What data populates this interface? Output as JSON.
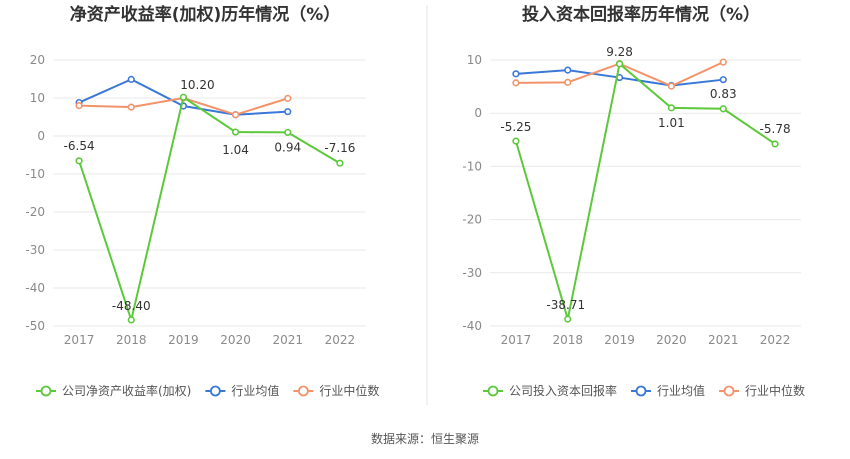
{
  "source": "数据来源：恒生聚源",
  "colors": {
    "company": "#5cc93b",
    "avg": "#3a78d8",
    "median": "#f2936a"
  },
  "chart_data": [
    {
      "type": "line",
      "title": "净资产收益率(加权)历年情况（%）",
      "categories": [
        "2017",
        "2018",
        "2019",
        "2020",
        "2021",
        "2022"
      ],
      "ylim": [
        -50,
        20
      ],
      "yticks": [
        20,
        10,
        0,
        -10,
        -20,
        -30,
        -40,
        -50
      ],
      "grid": true,
      "legend_position": "bottom",
      "series": [
        {
          "name": "公司净资产收益率(加权)",
          "color_key": "company",
          "values": [
            -6.54,
            -48.4,
            10.2,
            1.04,
            0.94,
            -7.16
          ],
          "labels": [
            "-6.54",
            "-48.40",
            "10.20",
            "1.04",
            "0.94",
            "-7.16"
          ]
        },
        {
          "name": "行业均值",
          "color_key": "avg",
          "values": [
            8.8,
            14.9,
            7.9,
            5.6,
            6.4,
            null
          ]
        },
        {
          "name": "行业中位数",
          "color_key": "median",
          "values": [
            8.0,
            7.6,
            10.0,
            5.6,
            9.9,
            null
          ]
        }
      ]
    },
    {
      "type": "line",
      "title": "投入资本回报率历年情况（%）",
      "categories": [
        "2017",
        "2018",
        "2019",
        "2020",
        "2021",
        "2022"
      ],
      "ylim": [
        -40,
        10
      ],
      "yticks": [
        10,
        0,
        -10,
        -20,
        -30,
        -40
      ],
      "grid": true,
      "legend_position": "bottom",
      "series": [
        {
          "name": "公司投入资本回报率",
          "color_key": "company",
          "values": [
            -5.25,
            -38.71,
            9.28,
            1.01,
            0.83,
            -5.78
          ],
          "labels": [
            "-5.25",
            "-38.71",
            "9.28",
            "1.01",
            "0.83",
            "-5.78"
          ]
        },
        {
          "name": "行业均值",
          "color_key": "avg",
          "values": [
            7.4,
            8.1,
            6.7,
            5.2,
            6.3,
            null
          ]
        },
        {
          "name": "行业中位数",
          "color_key": "median",
          "values": [
            5.7,
            5.8,
            9.3,
            5.1,
            9.6,
            null
          ]
        }
      ]
    }
  ]
}
